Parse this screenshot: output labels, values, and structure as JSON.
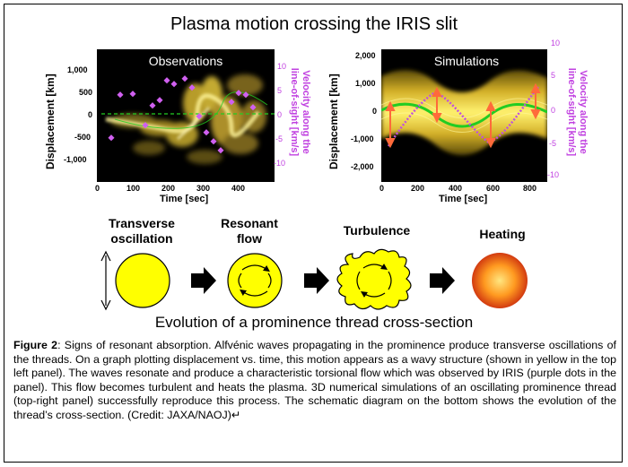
{
  "title": "Plasma motion crossing the IRIS slit",
  "observations": {
    "panel_title": "Observations",
    "ylabel": "Displacement [km]",
    "xlabel": "Time [sec]",
    "yticks": [
      "1,000",
      "500",
      "0",
      "-500",
      "-1,000"
    ],
    "xticks": [
      "0",
      "100",
      "200",
      "300",
      "400"
    ],
    "right_label_line1": "Velocity along the",
    "right_label_line2": "line-of-sight [km/s]",
    "right_ticks": [
      "10",
      "5",
      "0",
      "-5",
      "-10"
    ]
  },
  "simulations": {
    "panel_title": "Simulations",
    "ylabel": "Displacement [km]",
    "xlabel": "Time [sec]",
    "yticks": [
      "2,000",
      "1,000",
      "0",
      "-1,000",
      "-2,000"
    ],
    "xticks": [
      "0",
      "200",
      "400",
      "600",
      "800"
    ],
    "right_label_line1": "Velocity along the",
    "right_label_line2": "line-of-sight [km/s]",
    "right_ticks": [
      "10",
      "5",
      "0",
      "-5",
      "-10"
    ]
  },
  "stages": [
    {
      "line1": "Transverse",
      "line2": "oscillation"
    },
    {
      "line1": "Resonant",
      "line2": "flow"
    },
    {
      "line1": "Turbulence",
      "line2": ""
    },
    {
      "line1": "Heating",
      "line2": ""
    }
  ],
  "evolution_caption": "Evolution of a prominence thread cross-section",
  "figure_label": "Figure 2",
  "figure_caption": ": Signs of resonant absorption. Alfvénic waves propagating in the prominence produce transverse oscillations of the threads. On a graph plotting displacement vs. time, this motion appears as a wavy structure (shown in yellow in the top left panel). The waves resonate and produce a characteristic torsional flow which was observed by IRIS (purple dots in the panel). This flow becomes turbulent and heats the plasma. 3D numerical simulations of an oscillating prominence thread (top-right panel) successfully reproduce this process. The schematic diagram on the bottom shows the evolution of the thread’s cross-section. (Credit: JAXA/NAOJ)↵",
  "colors": {
    "velocity": "#c040e0",
    "thread": "#ffee00",
    "fit": "#22cc22"
  }
}
